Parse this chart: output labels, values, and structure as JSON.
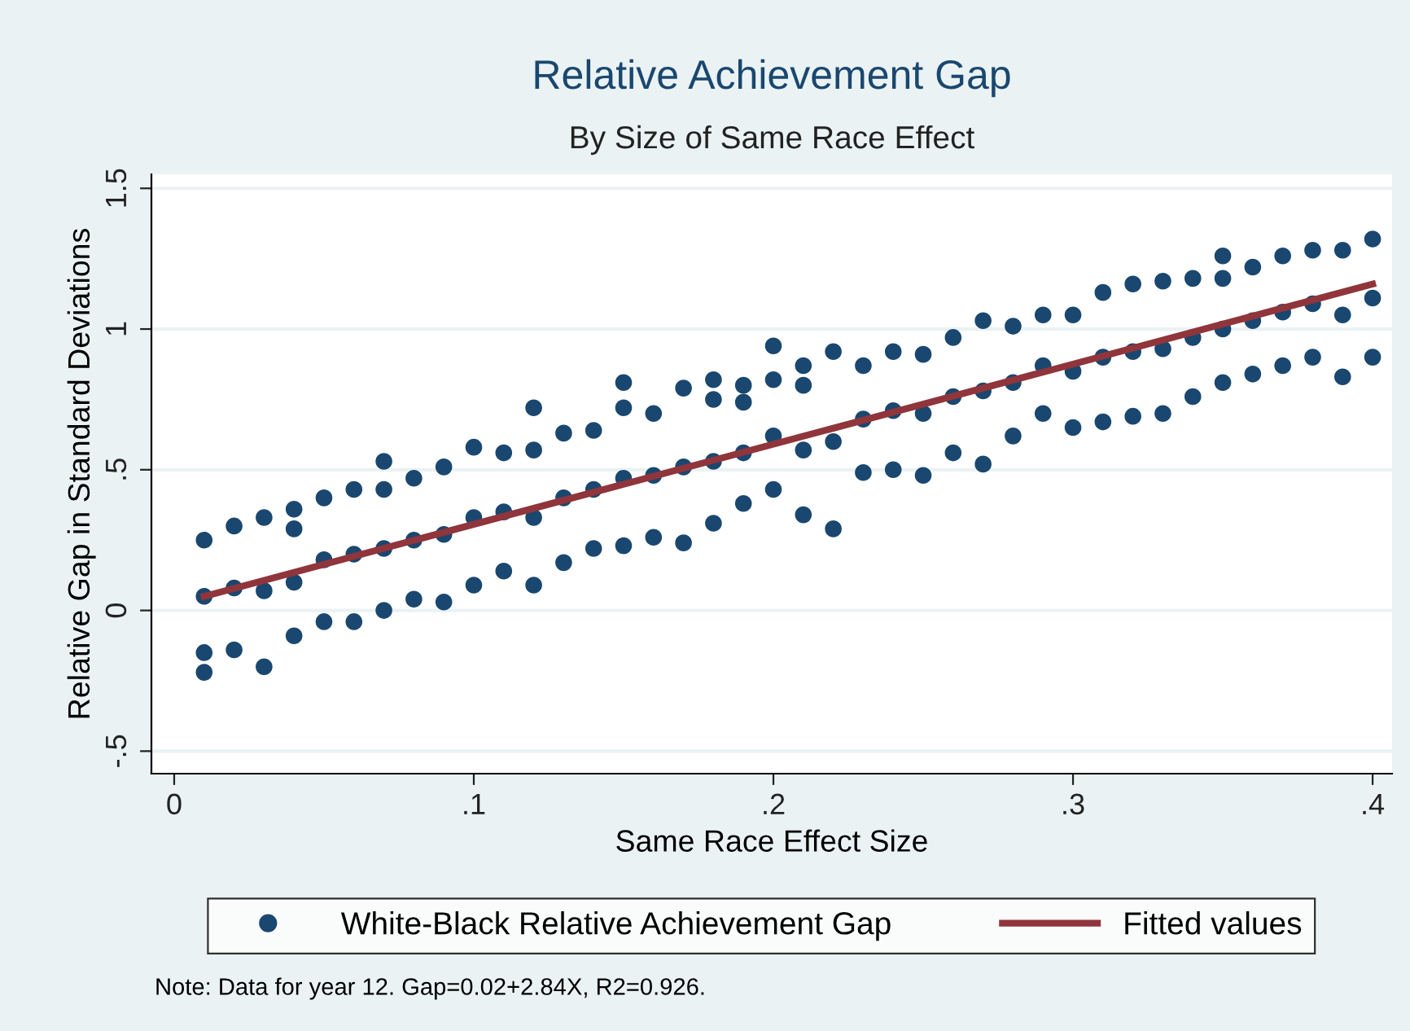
{
  "chart_data": {
    "type": "scatter",
    "title": "Relative Achievement Gap",
    "subtitle": "By Size of Same Race Effect",
    "xlabel": "Same Race Effect Size",
    "ylabel": "Relative Gap in Standard Deviations",
    "xlim": [
      -0.0076,
      0.4065
    ],
    "ylim": [
      -0.58,
      1.55
    ],
    "xticks": [
      0,
      {
        "value": 0.1,
        "label": ".1"
      },
      {
        "value": 0.2,
        "label": ".2"
      },
      {
        "value": 0.3,
        "label": ".3"
      },
      {
        "value": 0.4,
        "label": ".4"
      }
    ],
    "yticks": [
      {
        "value": -0.5,
        "label": "-.5"
      },
      0,
      {
        "value": 0.5,
        "label": ".5"
      },
      1,
      1.5
    ],
    "grid": "y",
    "legend": "bottom",
    "series": [
      {
        "name": "White-Black Relative Achievement Gap",
        "marker": "circle",
        "color": "#1a476f",
        "x": [
          0.01,
          0.01,
          0.01,
          0.01,
          0.02,
          0.02,
          0.02,
          0.03,
          0.03,
          0.03,
          0.04,
          0.04,
          0.04,
          0.04,
          0.05,
          0.05,
          0.05,
          0.06,
          0.06,
          0.06,
          0.07,
          0.07,
          0.07,
          0.07,
          0.08,
          0.08,
          0.08,
          0.09,
          0.09,
          0.09,
          0.1,
          0.1,
          0.1,
          0.11,
          0.11,
          0.11,
          0.12,
          0.12,
          0.12,
          0.12,
          0.13,
          0.13,
          0.13,
          0.14,
          0.14,
          0.14,
          0.15,
          0.15,
          0.15,
          0.15,
          0.16,
          0.16,
          0.16,
          0.17,
          0.17,
          0.17,
          0.18,
          0.18,
          0.18,
          0.18,
          0.19,
          0.19,
          0.19,
          0.19,
          0.2,
          0.2,
          0.2,
          0.2,
          0.21,
          0.21,
          0.21,
          0.21,
          0.22,
          0.22,
          0.22,
          0.23,
          0.23,
          0.23,
          0.24,
          0.24,
          0.24,
          0.25,
          0.25,
          0.25,
          0.26,
          0.26,
          0.26,
          0.27,
          0.27,
          0.27,
          0.28,
          0.28,
          0.28,
          0.29,
          0.29,
          0.29,
          0.3,
          0.3,
          0.3,
          0.31,
          0.31,
          0.31,
          0.32,
          0.32,
          0.32,
          0.33,
          0.33,
          0.33,
          0.34,
          0.34,
          0.34,
          0.35,
          0.35,
          0.35,
          0.35,
          0.36,
          0.36,
          0.36,
          0.37,
          0.37,
          0.37,
          0.38,
          0.38,
          0.38,
          0.39,
          0.39,
          0.39,
          0.4,
          0.4,
          0.4
        ],
        "values": [
          -0.15,
          0.05,
          0.25,
          -0.22,
          -0.14,
          0.08,
          0.3,
          -0.2,
          0.07,
          0.33,
          -0.09,
          0.1,
          0.29,
          0.36,
          -0.04,
          0.18,
          0.4,
          -0.04,
          0.2,
          0.43,
          0.0,
          0.22,
          0.43,
          0.53,
          0.04,
          0.25,
          0.47,
          0.03,
          0.27,
          0.51,
          0.09,
          0.33,
          0.58,
          0.14,
          0.35,
          0.56,
          0.09,
          0.33,
          0.57,
          0.72,
          0.17,
          0.4,
          0.63,
          0.22,
          0.43,
          0.64,
          0.23,
          0.47,
          0.72,
          0.81,
          0.26,
          0.48,
          0.7,
          0.24,
          0.51,
          0.79,
          0.31,
          0.53,
          0.75,
          0.82,
          0.38,
          0.56,
          0.74,
          0.8,
          0.43,
          0.62,
          0.82,
          0.94,
          0.34,
          0.57,
          0.8,
          0.87,
          0.29,
          0.6,
          0.92,
          0.49,
          0.68,
          0.87,
          0.5,
          0.71,
          0.92,
          0.48,
          0.7,
          0.91,
          0.56,
          0.76,
          0.97,
          0.52,
          0.78,
          1.03,
          0.62,
          0.81,
          1.01,
          0.7,
          0.87,
          1.05,
          0.65,
          0.85,
          1.05,
          0.67,
          0.9,
          1.13,
          0.69,
          0.92,
          1.16,
          0.7,
          0.93,
          1.17,
          0.76,
          0.97,
          1.18,
          0.81,
          1.0,
          1.18,
          1.26,
          0.84,
          1.03,
          1.22,
          0.87,
          1.06,
          1.26,
          0.9,
          1.09,
          1.28,
          0.83,
          1.05,
          1.28,
          0.9,
          1.11,
          1.32
        ]
      },
      {
        "name": "Fitted values",
        "type": "line",
        "color": "#90353b",
        "x": [
          0.01,
          0.4
        ],
        "values": [
          0.05,
          1.16
        ]
      }
    ],
    "annotations": [
      "Note: Data for year 12. Gap=0.02+2.84X, R2=0.926."
    ]
  }
}
